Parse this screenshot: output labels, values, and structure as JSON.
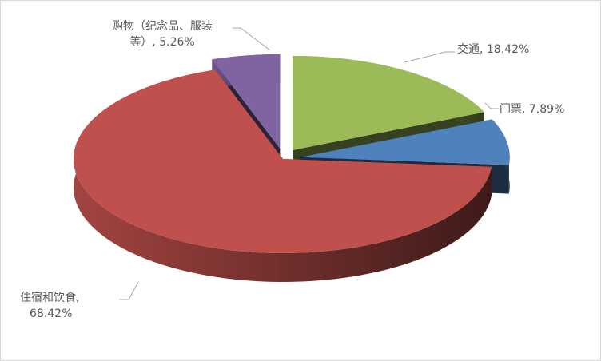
{
  "chart_data": {
    "type": "pie",
    "style": "3d-exploded",
    "title": "",
    "slices": [
      {
        "label": "交通",
        "value": 18.42,
        "display": "交通, 18.42%",
        "color": "#9BBB59",
        "exploded": true
      },
      {
        "label": "门票",
        "value": 7.89,
        "display": "门票, 7.89%",
        "color": "#4F81BD",
        "exploded": true
      },
      {
        "label": "住宿和饮食",
        "value": 68.42,
        "display_line1": "住宿和饮食,",
        "display_line2": "68.42%",
        "color": "#C0504D",
        "exploded": false
      },
      {
        "label": "购物（纪念品、服装等）",
        "value": 5.26,
        "display_line1": "购物（纪念品、服装",
        "display_line2": "等）, 5.26%",
        "color": "#8064A2",
        "exploded": true
      }
    ],
    "legend": "none"
  }
}
